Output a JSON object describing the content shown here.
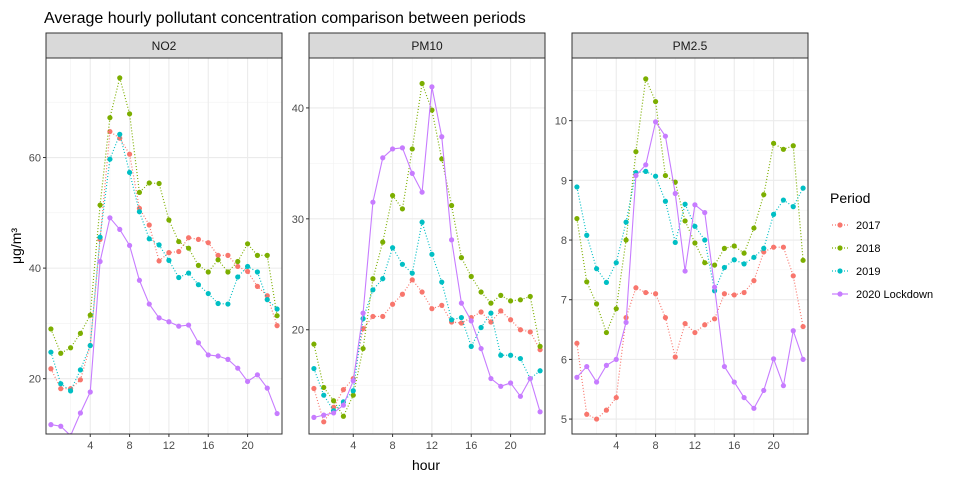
{
  "title": "Average hourly pollutant concentration comparison between periods",
  "xlabel": "hour",
  "ylabel": "μg/m³",
  "legend": {
    "title": "Period",
    "position": "right",
    "entries": [
      "2017",
      "2018",
      "2019",
      "2020 Lockdown"
    ]
  },
  "colors": {
    "2017": "#F8766D",
    "2018": "#7CAE00",
    "2019": "#00BFC4",
    "2020 Lockdown": "#C77CFF"
  },
  "chart_data": {
    "type": "line",
    "x": [
      0,
      1,
      2,
      3,
      4,
      5,
      6,
      7,
      8,
      9,
      10,
      11,
      12,
      13,
      14,
      15,
      16,
      17,
      18,
      19,
      20,
      21,
      22,
      23
    ],
    "xticks": [
      4,
      8,
      12,
      16,
      20
    ],
    "xlim": [
      -0.5,
      23.5
    ],
    "facets": [
      {
        "name": "NO2",
        "ylim": [
          10,
          78
        ],
        "yticks": [
          20,
          40,
          60
        ],
        "series": [
          {
            "name": "2017",
            "style": "dotted",
            "values": [
              21.8,
              18.2,
              18.2,
              19.8,
              26.0,
              45.2,
              64.7,
              63.5,
              60.6,
              50.8,
              47.8,
              41.3,
              42.8,
              43.0,
              45.5,
              45.2,
              44.6,
              42.3,
              42.3,
              40.3,
              39.4,
              36.7,
              35.0,
              29.6
            ]
          },
          {
            "name": "2018",
            "style": "dotted",
            "values": [
              29.0,
              24.6,
              25.6,
              28.2,
              31.5,
              51.4,
              67.2,
              74.4,
              67.9,
              53.7,
              55.4,
              55.3,
              48.7,
              44.8,
              43.6,
              40.5,
              39.3,
              41.5,
              39.3,
              41.2,
              44.4,
              42.3,
              42.3,
              31.4
            ]
          },
          {
            "name": "2019",
            "style": "dotted",
            "values": [
              24.8,
              19.1,
              17.8,
              21.6,
              26.0,
              45.6,
              59.7,
              64.2,
              57.3,
              50.2,
              45.3,
              44.2,
              41.4,
              38.3,
              39.1,
              37.0,
              35.4,
              33.6,
              33.5,
              38.4,
              40.3,
              39.3,
              34.3,
              32.6
            ]
          },
          {
            "name": "2020 Lockdown",
            "style": "solid",
            "values": [
              11.7,
              11.4,
              9.7,
              13.8,
              17.6,
              41.2,
              49.1,
              47.0,
              44.1,
              37.8,
              33.5,
              31.0,
              30.3,
              29.5,
              29.7,
              26.5,
              24.3,
              24.1,
              23.5,
              21.9,
              19.5,
              20.7,
              18.3,
              13.7
            ]
          }
        ]
      },
      {
        "name": "PM10",
        "ylim": [
          10.6,
          44.5
        ],
        "yticks": [
          20,
          30,
          40
        ],
        "series": [
          {
            "name": "2017",
            "style": "dotted",
            "values": [
              14.7,
              11.7,
              13.0,
              14.6,
              15.6,
              20.1,
              21.2,
              21.2,
              22.3,
              23.2,
              24.5,
              23.4,
              21.9,
              22.2,
              20.7,
              20.6,
              21.1,
              21.6,
              20.7,
              21.7,
              20.9,
              20.0,
              19.8,
              18.2
            ]
          },
          {
            "name": "2018",
            "style": "dotted",
            "values": [
              18.7,
              14.8,
              13.6,
              12.2,
              14.1,
              18.3,
              24.6,
              27.9,
              32.1,
              30.9,
              36.3,
              42.2,
              39.8,
              35.4,
              31.2,
              26.5,
              24.8,
              23.4,
              22.4,
              23.1,
              22.6,
              22.7,
              23.0,
              18.5
            ]
          },
          {
            "name": "2019",
            "style": "dotted",
            "values": [
              16.5,
              14.1,
              12.7,
              13.5,
              14.5,
              21.0,
              23.6,
              24.6,
              27.4,
              25.9,
              25.1,
              29.7,
              26.8,
              24.3,
              20.9,
              21.1,
              18.5,
              20.2,
              21.5,
              17.7,
              17.7,
              17.4,
              15.6,
              16.3
            ]
          },
          {
            "name": "2020 Lockdown",
            "style": "solid",
            "values": [
              12.1,
              12.3,
              12.5,
              13.2,
              15.4,
              21.5,
              31.5,
              35.5,
              36.3,
              36.4,
              34.1,
              32.4,
              41.9,
              37.4,
              28.1,
              22.4,
              20.8,
              18.3,
              15.6,
              14.9,
              15.2,
              14.0,
              15.6,
              12.6
            ]
          }
        ]
      },
      {
        "name": "PM2.5",
        "ylim": [
          4.75,
          11.05
        ],
        "yticks": [
          5,
          6,
          7,
          8,
          9,
          10
        ],
        "series": [
          {
            "name": "2017",
            "style": "dotted",
            "values": [
              6.27,
              5.08,
              5.0,
              5.15,
              5.36,
              6.7,
              7.2,
              7.12,
              7.1,
              6.7,
              6.04,
              6.6,
              6.45,
              6.58,
              6.68,
              7.1,
              7.08,
              7.12,
              7.32,
              7.8,
              7.88,
              7.88,
              7.4,
              6.55
            ]
          },
          {
            "name": "2018",
            "style": "dotted",
            "values": [
              8.36,
              7.3,
              6.93,
              6.45,
              6.85,
              8.0,
              9.48,
              10.7,
              10.32,
              9.08,
              8.97,
              8.32,
              7.95,
              7.62,
              7.58,
              7.86,
              7.9,
              7.78,
              8.2,
              8.76,
              9.62,
              9.52,
              9.58,
              7.66
            ]
          },
          {
            "name": "2019",
            "style": "dotted",
            "values": [
              8.89,
              8.08,
              7.52,
              7.29,
              7.62,
              8.3,
              9.13,
              9.15,
              9.07,
              8.65,
              7.96,
              8.6,
              8.23,
              8.0,
              7.15,
              7.54,
              7.67,
              7.6,
              7.71,
              7.86,
              8.43,
              8.67,
              8.56,
              8.87
            ]
          },
          {
            "name": "2020 Lockdown",
            "style": "solid",
            "values": [
              5.7,
              5.88,
              5.62,
              5.9,
              6.0,
              6.62,
              9.08,
              9.26,
              9.98,
              9.74,
              8.78,
              7.48,
              8.59,
              8.46,
              7.21,
              5.88,
              5.62,
              5.36,
              5.18,
              5.48,
              6.01,
              5.56,
              6.48,
              6.0
            ]
          }
        ]
      }
    ]
  }
}
